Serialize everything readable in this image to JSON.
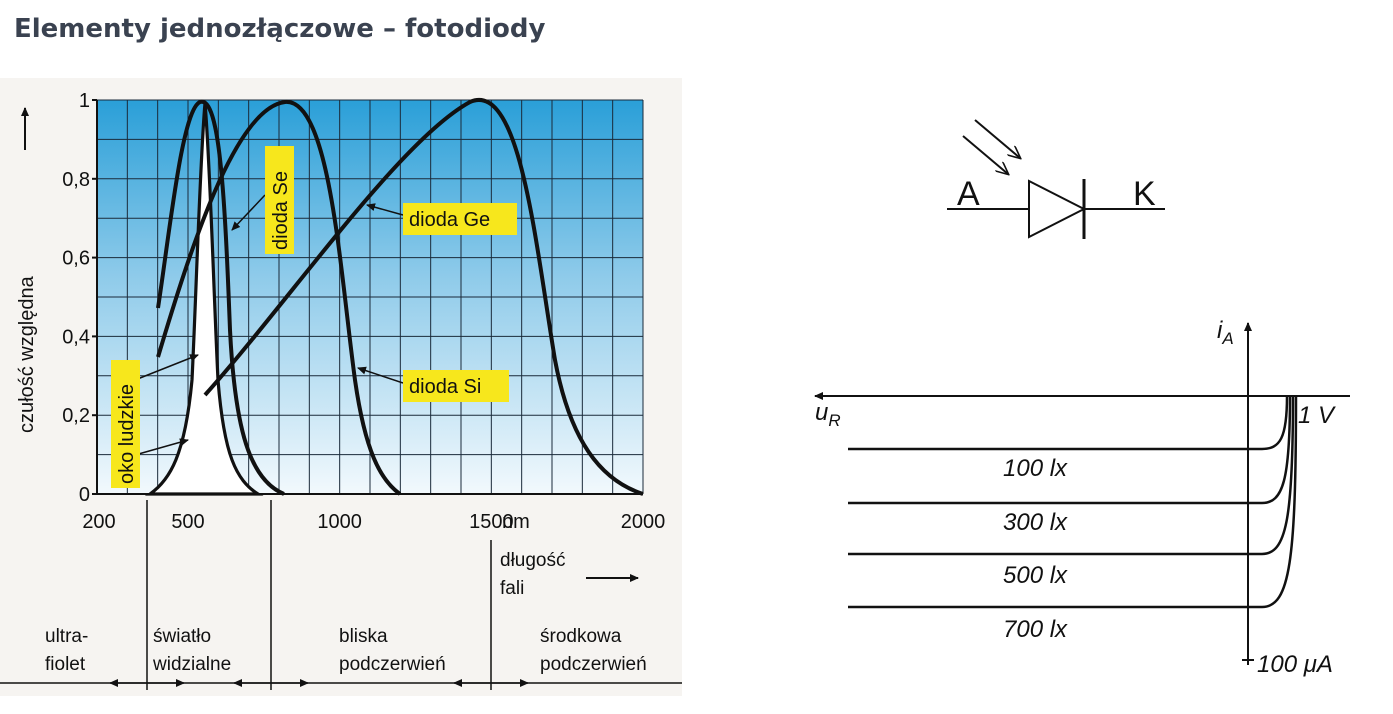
{
  "title": "Elementy jednozłączowe – fotodiody",
  "spectral_chart": {
    "ylabel": "czułość względna",
    "yticks": [
      "0",
      "0,2",
      "0,4",
      "0,6",
      "0,8",
      "1"
    ],
    "xticks": [
      {
        "value": 200,
        "label": "200"
      },
      {
        "value": 500,
        "label": "500"
      },
      {
        "value": 1000,
        "label": "1000"
      },
      {
        "value": 1500,
        "label": "1500"
      },
      {
        "value": 2000,
        "label": "2000"
      }
    ],
    "xunit": "nm",
    "xlabel_line1": "długość",
    "xlabel_line2": "fali",
    "series_labels": {
      "oko": "oko ludzkie",
      "se": "dioda Se",
      "ge": "dioda Ge",
      "si": "dioda Si"
    },
    "regions": [
      {
        "line1": "ultra-",
        "line2": "fiolet"
      },
      {
        "line1": "światło",
        "line2": "widzialne"
      },
      {
        "line1": "bliska",
        "line2": "podczerwień"
      },
      {
        "line1": "środkowa",
        "line2": "podczerwień"
      }
    ],
    "colors": {
      "background_top": "#2a9fd8",
      "background_bottom": "#eef7fc",
      "tag": "#f7e71c",
      "curve": "#111111"
    }
  },
  "diode_symbol": {
    "anode_label": "A",
    "cathode_label": "K"
  },
  "iv_chart": {
    "y_axis_label": "i",
    "y_axis_sub": "A",
    "x_axis_label": "u",
    "x_axis_sub": "R",
    "voltage_tick": "1 V",
    "current_tick": "100 μA",
    "curves": [
      "100 lx",
      "300 lx",
      "500 lx",
      "700 lx"
    ]
  }
}
